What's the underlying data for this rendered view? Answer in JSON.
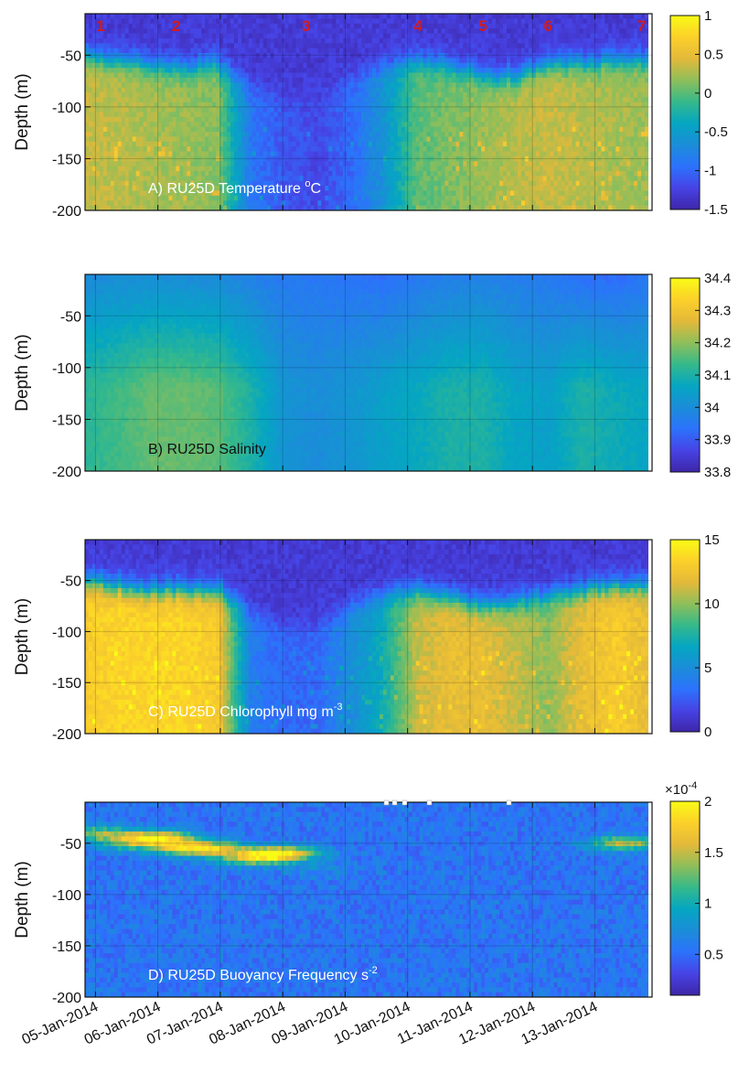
{
  "colormap": [
    "#3e26a8",
    "#4743e5",
    "#2c72fc",
    "#1b8dd8",
    "#05a6c2",
    "#36b98a",
    "#8fbe5a",
    "#e3b93a",
    "#fcd02a",
    "#f9fb15"
  ],
  "chart_data": [
    {
      "type": "heatmap",
      "title": "A) RU25D Temperature ",
      "title_unit_sup": "o",
      "title_unit_after": "C",
      "title_color": "#ffffff",
      "ylabel": "Depth (m)",
      "yticks": [
        "-50",
        "-100",
        "-150",
        "-200"
      ],
      "ylim": [
        -200,
        -10
      ],
      "xlim": [
        "2014-01-04T20:00",
        "2014-01-13T22:00"
      ],
      "station_labels": [
        "1",
        "2",
        "3",
        "4",
        "5",
        "6",
        "7"
      ],
      "station_times": [
        "2014-01-05T02:00",
        "2014-01-06T07:00",
        "2014-01-08T09:00",
        "2014-01-10T04:00",
        "2014-01-11T05:00",
        "2014-01-12T06:00",
        "2014-01-13T18:00"
      ],
      "colorbar_ticks": [
        "1",
        "0.5",
        "0",
        "-0.5",
        "-1",
        "-1.5"
      ],
      "clim": [
        -1.5,
        1
      ],
      "surface_value": [
        0.35,
        0.3,
        0.25,
        0.2,
        0.15,
        -0.9,
        -1.1,
        -1.2,
        -1.0,
        -0.6,
        0.0,
        0.1,
        0.2,
        0.3,
        0.35,
        0.3,
        0.25,
        0.2
      ],
      "mixed_layer_depth_m": [
        -50,
        -55,
        -60,
        -62,
        -58,
        -80,
        -90,
        -85,
        -70,
        -60,
        -55,
        -60,
        -70,
        -70,
        -60,
        -58,
        -55,
        -55
      ],
      "deep_value": -1.3
    },
    {
      "type": "heatmap",
      "title": "B) RU25D Salinity",
      "title_color": "#111111",
      "ylabel": "Depth (m)",
      "yticks": [
        "-50",
        "-100",
        "-150",
        "-200"
      ],
      "ylim": [
        -200,
        -10
      ],
      "colorbar_ticks": [
        "34.4",
        "34.3",
        "34.2",
        "34.1",
        "34",
        "33.9",
        "33.8"
      ],
      "clim": [
        33.8,
        34.4
      ],
      "surface_value": [
        33.99,
        34.0,
        34.0,
        34.0,
        33.99,
        33.97,
        33.95,
        33.95,
        33.94,
        33.93,
        33.95,
        33.96,
        33.97,
        33.96,
        33.95,
        33.93,
        33.92,
        33.95
      ],
      "deep_value": [
        34.12,
        34.14,
        34.17,
        34.17,
        34.16,
        34.1,
        34.02,
        34.0,
        34.02,
        34.05,
        34.07,
        34.1,
        34.1,
        34.06,
        34.05,
        34.1,
        34.08,
        34.06
      ]
    },
    {
      "type": "heatmap",
      "title": "C) RU25D Chlorophyll mg m",
      "title_unit_sup": "-3",
      "title_color": "#ffffff",
      "ylabel": "Depth (m)",
      "yticks": [
        "-50",
        "-100",
        "-150",
        "-200"
      ],
      "ylim": [
        -200,
        -10
      ],
      "colorbar_ticks": [
        "15",
        "10",
        "5",
        "0"
      ],
      "clim": [
        0,
        15
      ],
      "surface_value": [
        13,
        13.5,
        13.5,
        13.5,
        13,
        4,
        3,
        3,
        5,
        7,
        11,
        12,
        12,
        11,
        10,
        12,
        13,
        12
      ],
      "mixed_layer_depth_m": [
        -50,
        -55,
        -60,
        -60,
        -58,
        -80,
        -95,
        -95,
        -75,
        -65,
        -60,
        -65,
        -75,
        -70,
        -65,
        -60,
        -55,
        -55
      ],
      "deep_value": 1.2
    },
    {
      "type": "heatmap",
      "title": "D) RU25D  Buoyancy Frequency s",
      "title_unit_sup": "-2",
      "title_color": "#ffffff",
      "ylabel": "Depth (m)",
      "yticks": [
        "-50",
        "-100",
        "-150",
        "-200"
      ],
      "ylim": [
        -200,
        -10
      ],
      "colorbar_ticks": [
        "2",
        "1.5",
        "1",
        "0.5"
      ],
      "colorbar_multiplier": "×10",
      "colorbar_exponent": "-4",
      "clim": [
        0.1,
        2.0
      ],
      "background_value": 0.55,
      "stratification_band": [
        {
          "t": "2014-01-05T00:00",
          "depth": -40,
          "value": 1.3
        },
        {
          "t": "2014-01-05T12:00",
          "depth": -50,
          "value": 1.1
        },
        {
          "t": "2014-01-06T00:00",
          "depth": -45,
          "value": 1.8
        },
        {
          "t": "2014-01-06T12:00",
          "depth": -55,
          "value": 1.6
        },
        {
          "t": "2014-01-07T00:00",
          "depth": -55,
          "value": 1.1
        },
        {
          "t": "2014-01-07T12:00",
          "depth": -65,
          "value": 1.4
        },
        {
          "t": "2014-01-08T00:00",
          "depth": -60,
          "value": 1.8
        },
        {
          "t": "2014-01-08T12:00",
          "depth": -75,
          "value": 0.7
        },
        {
          "t": "2014-01-13T12:00",
          "depth": -50,
          "value": 1.5
        }
      ]
    }
  ],
  "x_axis": {
    "tick_dates": [
      "2014-01-05",
      "2014-01-06",
      "2014-01-07",
      "2014-01-08",
      "2014-01-09",
      "2014-01-10",
      "2014-01-11",
      "2014-01-12",
      "2014-01-13"
    ],
    "tick_labels": [
      "05-Jan-2014",
      "06-Jan-2014",
      "07-Jan-2014",
      "08-Jan-2014",
      "09-Jan-2014",
      "10-Jan-2014",
      "11-Jan-2014",
      "12-Jan-2014",
      "13-Jan-2014"
    ]
  }
}
